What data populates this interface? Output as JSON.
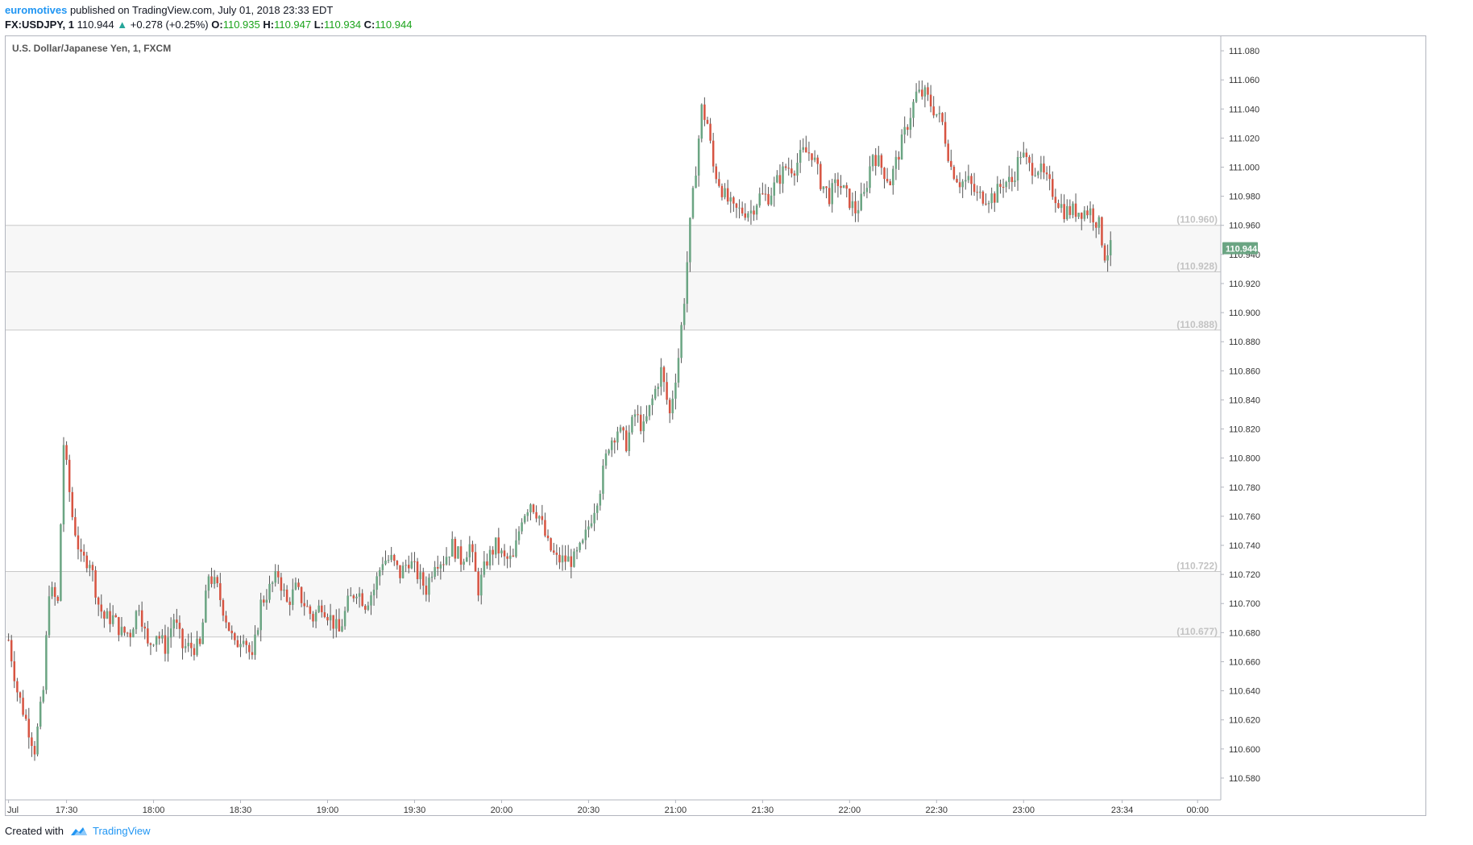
{
  "header": {
    "author": "euromotives",
    "published_text": "published on TradingView.com, July 01, 2018 23:33 EDT",
    "symbol": "FX:USDJPY, 1",
    "last": "110.944",
    "change_arrow": "▲",
    "change": "+0.278 (+0.25%)",
    "o_label": "O:",
    "o_value": "110.935",
    "h_label": "H:",
    "h_value": "110.947",
    "l_label": "L:",
    "l_value": "110.934",
    "c_label": "C:",
    "c_value": "110.944"
  },
  "footer": {
    "created_with": "Created with",
    "brand": "TradingView",
    "logo_icon": "tradingview-logo-icon"
  },
  "colors": {
    "up": "#6ba583",
    "down": "#d75442",
    "line": "#c8c8c8",
    "band": "#f7f7f7",
    "price_tag": "#6ba583",
    "level_label": "#c3c3c3"
  },
  "chart_data": {
    "type": "candlestick",
    "title": "U.S. Dollar/Japanese Yen, 1, FXCM",
    "ylim": [
      110.565,
      111.09
    ],
    "y_ticks": [
      "111.080",
      "111.060",
      "111.040",
      "111.020",
      "111.000",
      "110.980",
      "110.960",
      "110.940",
      "110.920",
      "110.900",
      "110.880",
      "110.860",
      "110.840",
      "110.820",
      "110.800",
      "110.780",
      "110.760",
      "110.740",
      "110.720",
      "110.700",
      "110.680",
      "110.660",
      "110.640",
      "110.620",
      "110.600",
      "110.580"
    ],
    "x_ticks": [
      {
        "label": "Jul",
        "t": 0
      },
      {
        "label": "17:30",
        "t": 20
      },
      {
        "label": "18:00",
        "t": 50
      },
      {
        "label": "18:30",
        "t": 80
      },
      {
        "label": "19:00",
        "t": 110
      },
      {
        "label": "19:30",
        "t": 140
      },
      {
        "label": "20:00",
        "t": 170
      },
      {
        "label": "20:30",
        "t": 200
      },
      {
        "label": "21:00",
        "t": 230
      },
      {
        "label": "21:30",
        "t": 260
      },
      {
        "label": "22:00",
        "t": 290
      },
      {
        "label": "22:30",
        "t": 320
      },
      {
        "label": "23:00",
        "t": 350
      },
      {
        "label": "23:34",
        "t": 384
      },
      {
        "label": "00:00",
        "t": 410
      }
    ],
    "x_range_minutes": [
      -1,
      418
    ],
    "current_price": "110.944",
    "levels": [
      {
        "value": 110.96,
        "label": "(110.960)"
      },
      {
        "value": 110.928,
        "label": "(110.928)"
      },
      {
        "value": 110.888,
        "label": "(110.888)"
      },
      {
        "value": 110.722,
        "label": "(110.722)"
      },
      {
        "value": 110.677,
        "label": "(110.677)"
      }
    ],
    "bands": [
      [
        110.928,
        110.96
      ],
      [
        110.888,
        110.928
      ],
      [
        110.677,
        110.722
      ]
    ],
    "close_path": [
      [
        0,
        110.675
      ],
      [
        3,
        110.64
      ],
      [
        6,
        110.62
      ],
      [
        9,
        110.6
      ],
      [
        12,
        110.64
      ],
      [
        14,
        110.71
      ],
      [
        17,
        110.7
      ],
      [
        19,
        110.81
      ],
      [
        22,
        110.76
      ],
      [
        25,
        110.73
      ],
      [
        28,
        110.73
      ],
      [
        31,
        110.7
      ],
      [
        33,
        110.69
      ],
      [
        36,
        110.69
      ],
      [
        39,
        110.68
      ],
      [
        42,
        110.68
      ],
      [
        45,
        110.7
      ],
      [
        48,
        110.67
      ],
      [
        51,
        110.68
      ],
      [
        54,
        110.67
      ],
      [
        57,
        110.69
      ],
      [
        60,
        110.67
      ],
      [
        63,
        110.67
      ],
      [
        66,
        110.67
      ],
      [
        69,
        110.72
      ],
      [
        72,
        110.71
      ],
      [
        75,
        110.69
      ],
      [
        78,
        110.67
      ],
      [
        81,
        110.68
      ],
      [
        84,
        110.66
      ],
      [
        87,
        110.7
      ],
      [
        90,
        110.71
      ],
      [
        93,
        110.72
      ],
      [
        96,
        110.7
      ],
      [
        99,
        110.71
      ],
      [
        102,
        110.7
      ],
      [
        105,
        110.69
      ],
      [
        108,
        110.7
      ],
      [
        111,
        110.69
      ],
      [
        114,
        110.68
      ],
      [
        117,
        110.7
      ],
      [
        120,
        110.71
      ],
      [
        123,
        110.7
      ],
      [
        126,
        110.71
      ],
      [
        129,
        110.73
      ],
      [
        132,
        110.73
      ],
      [
        135,
        110.72
      ],
      [
        138,
        110.73
      ],
      [
        141,
        110.72
      ],
      [
        144,
        110.71
      ],
      [
        147,
        110.73
      ],
      [
        150,
        110.73
      ],
      [
        153,
        110.74
      ],
      [
        156,
        110.73
      ],
      [
        159,
        110.74
      ],
      [
        162,
        110.71
      ],
      [
        165,
        110.73
      ],
      [
        168,
        110.74
      ],
      [
        171,
        110.73
      ],
      [
        174,
        110.73
      ],
      [
        177,
        110.76
      ],
      [
        180,
        110.77
      ],
      [
        183,
        110.76
      ],
      [
        186,
        110.74
      ],
      [
        189,
        110.73
      ],
      [
        192,
        110.73
      ],
      [
        195,
        110.73
      ],
      [
        198,
        110.74
      ],
      [
        201,
        110.76
      ],
      [
        204,
        110.78
      ],
      [
        207,
        110.81
      ],
      [
        210,
        110.82
      ],
      [
        213,
        110.81
      ],
      [
        216,
        110.83
      ],
      [
        219,
        110.82
      ],
      [
        222,
        110.84
      ],
      [
        225,
        110.86
      ],
      [
        228,
        110.83
      ],
      [
        231,
        110.87
      ],
      [
        233,
        110.91
      ],
      [
        235,
        110.96
      ],
      [
        237,
        111.0
      ],
      [
        239,
        111.04
      ],
      [
        241,
        111.03
      ],
      [
        243,
        111.0
      ],
      [
        245,
        110.99
      ],
      [
        247,
        110.98
      ],
      [
        250,
        110.97
      ],
      [
        253,
        110.97
      ],
      [
        256,
        110.97
      ],
      [
        259,
        110.98
      ],
      [
        262,
        110.98
      ],
      [
        265,
        110.99
      ],
      [
        268,
        111.0
      ],
      [
        271,
        111.0
      ],
      [
        274,
        111.01
      ],
      [
        277,
        111.01
      ],
      [
        280,
        110.99
      ],
      [
        283,
        110.98
      ],
      [
        286,
        110.99
      ],
      [
        289,
        110.98
      ],
      [
        292,
        110.97
      ],
      [
        295,
        110.98
      ],
      [
        298,
        111.01
      ],
      [
        301,
        111.0
      ],
      [
        304,
        110.99
      ],
      [
        307,
        111.01
      ],
      [
        310,
        111.03
      ],
      [
        313,
        111.05
      ],
      [
        316,
        111.05
      ],
      [
        319,
        111.04
      ],
      [
        322,
        111.03
      ],
      [
        325,
        111.0
      ],
      [
        328,
        110.99
      ],
      [
        331,
        110.99
      ],
      [
        334,
        110.98
      ],
      [
        337,
        110.98
      ],
      [
        340,
        110.98
      ],
      [
        343,
        110.99
      ],
      [
        346,
        110.99
      ],
      [
        349,
        111.01
      ],
      [
        352,
        111.0
      ],
      [
        355,
        111.0
      ],
      [
        358,
        110.99
      ],
      [
        361,
        110.98
      ],
      [
        364,
        110.97
      ],
      [
        367,
        110.97
      ],
      [
        370,
        110.97
      ],
      [
        373,
        110.97
      ],
      [
        376,
        110.96
      ],
      [
        378,
        110.94
      ],
      [
        380,
        110.944
      ]
    ]
  }
}
